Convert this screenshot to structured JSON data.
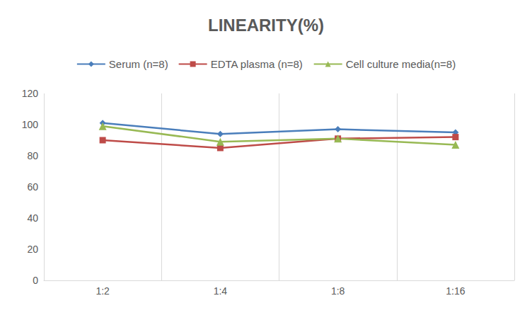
{
  "chart_data": {
    "type": "line",
    "title": "LINEARITY(%)",
    "categories": [
      "1:2",
      "1:4",
      "1:8",
      "1:16"
    ],
    "series": [
      {
        "name": "Serum (n=8)",
        "color": "#4a7ebb",
        "marker": "diamond",
        "values": [
          101,
          94,
          97,
          95
        ]
      },
      {
        "name": "EDTA plasma (n=8)",
        "color": "#be4b48",
        "marker": "square",
        "values": [
          90,
          85,
          91,
          92
        ]
      },
      {
        "name": "Cell culture media(n=8)",
        "color": "#98b954",
        "marker": "triangle",
        "values": [
          99,
          89,
          91,
          87
        ]
      }
    ],
    "ylim": [
      0,
      120
    ],
    "yticks": [
      0,
      20,
      40,
      60,
      80,
      100,
      120
    ],
    "grid": true,
    "legend": "top"
  }
}
